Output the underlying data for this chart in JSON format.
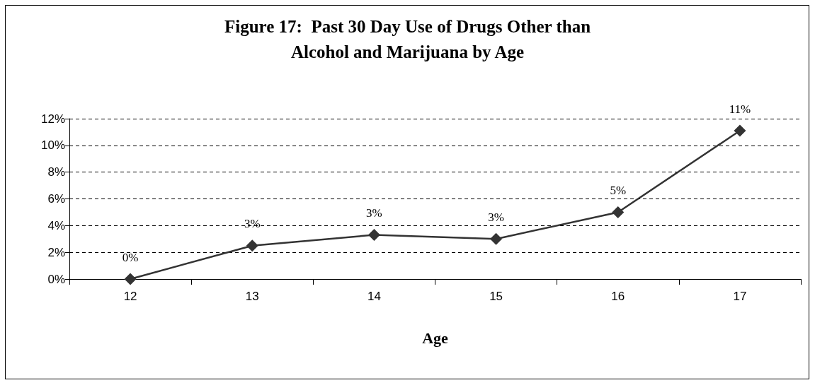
{
  "chart_data": {
    "type": "line",
    "title": "Figure 17:  Past 30 Day Use of Drugs Other than\nAlcohol and Marijuana by Age",
    "xlabel": "Age",
    "categories": [
      "12",
      "13",
      "14",
      "15",
      "16",
      "17"
    ],
    "series": [
      {
        "color": "#333333",
        "values": [
          0,
          2.5,
          3.3,
          3.0,
          5.0,
          11.1
        ],
        "value_labels": [
          "0%",
          "3%",
          "3%",
          "3%",
          "5%",
          "11%"
        ]
      }
    ],
    "ylim": [
      0,
      12
    ],
    "yticks": [
      {
        "value": 0,
        "label": "0%"
      },
      {
        "value": 2,
        "label": "2%"
      },
      {
        "value": 4,
        "label": "4%"
      },
      {
        "value": 6,
        "label": "6%"
      },
      {
        "value": 8,
        "label": "8%"
      },
      {
        "value": 10,
        "label": "10%"
      },
      {
        "value": 12,
        "label": "12%"
      }
    ],
    "grid": "y",
    "marker": "diamond",
    "line_style": "solid"
  }
}
